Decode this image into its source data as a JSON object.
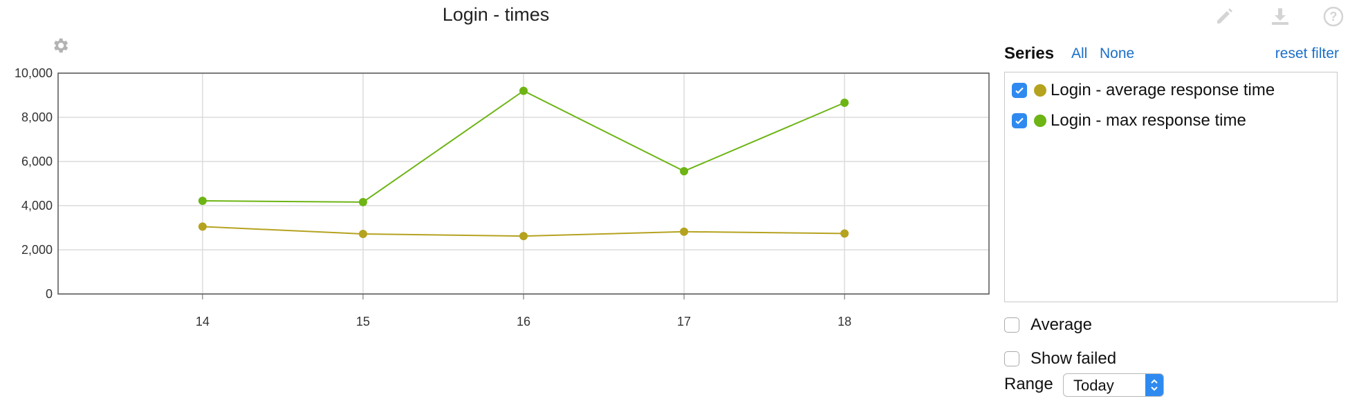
{
  "chart_data": {
    "type": "line",
    "title": "Login - times",
    "x": [
      14,
      15,
      16,
      17,
      18
    ],
    "xlim": [
      13.1,
      18.9
    ],
    "ylim": [
      0,
      10000
    ],
    "yticks": [
      0,
      2000,
      4000,
      6000,
      8000,
      10000
    ],
    "ytick_labels": [
      "0",
      "2,000",
      "4,000",
      "6,000",
      "8,000",
      "10,000"
    ],
    "xtick_labels": [
      "14",
      "15",
      "16",
      "17",
      "18"
    ],
    "grid": true,
    "series": [
      {
        "name": "Login - average response time",
        "color": "#b5a21f",
        "values": [
          3050,
          2720,
          2620,
          2820,
          2740
        ]
      },
      {
        "name": "Login - max response time",
        "color": "#6db414",
        "values": [
          4220,
          4160,
          9200,
          5560,
          8660
        ]
      }
    ]
  },
  "toolbar": {
    "icons": [
      "gear-icon",
      "pencil-icon",
      "download-icon",
      "help-icon"
    ]
  },
  "series_panel": {
    "title": "Series",
    "all_label": "All",
    "none_label": "None",
    "reset_label": "reset filter"
  },
  "options": {
    "average_label": "Average",
    "show_failed_label": "Show failed",
    "range_label": "Range",
    "range_value": "Today"
  }
}
